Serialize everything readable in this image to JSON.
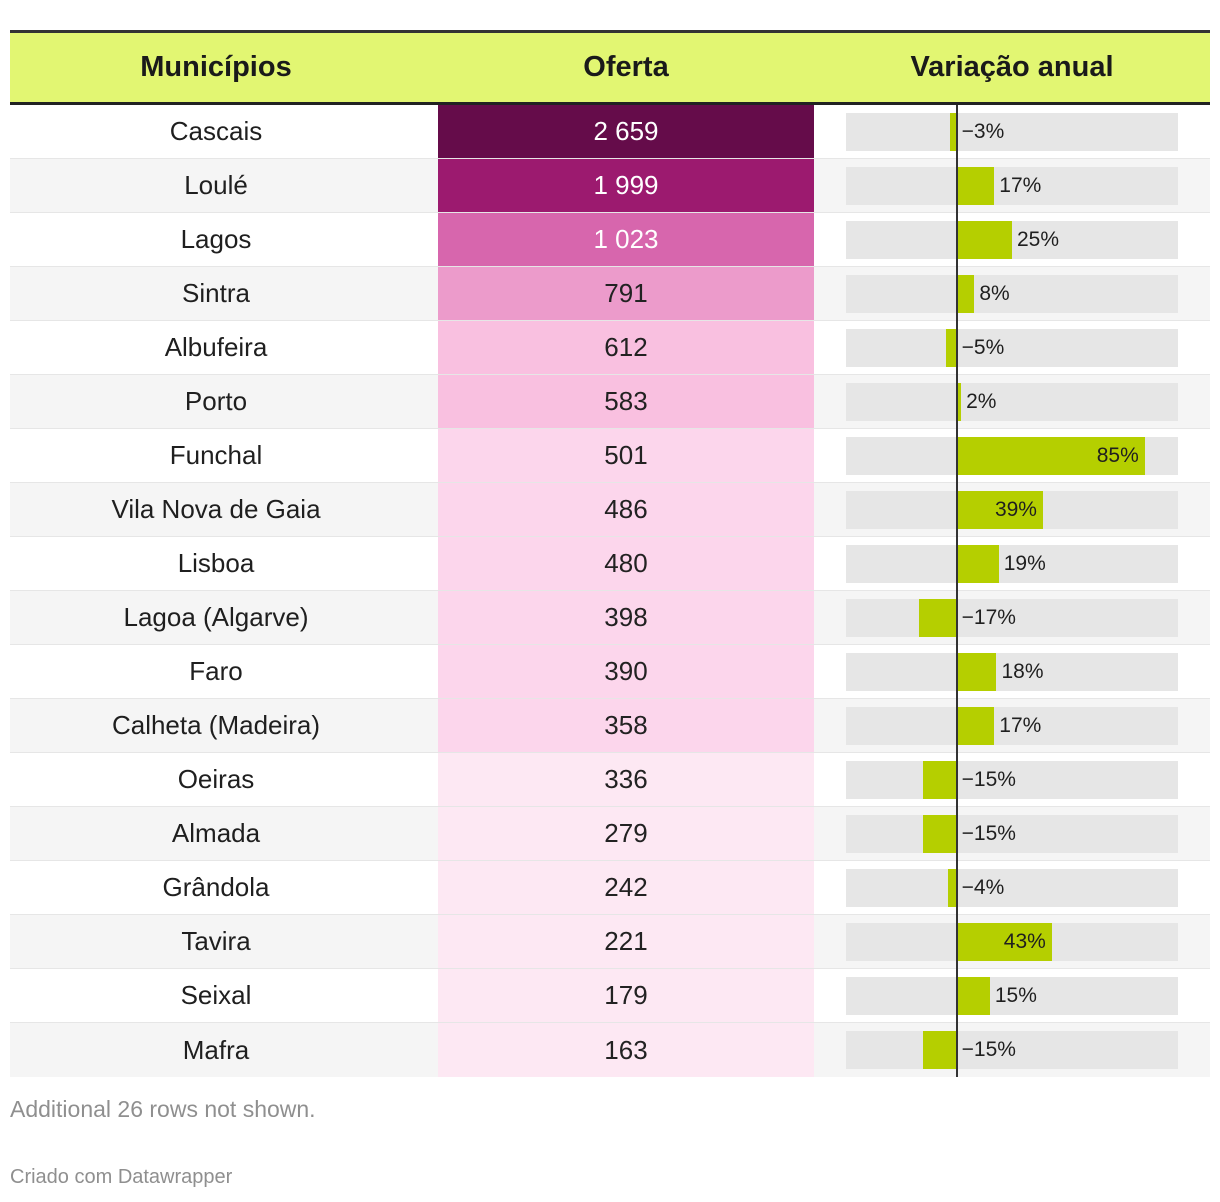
{
  "chart_data": {
    "type": "table",
    "columns": [
      "Municípios",
      "Oferta",
      "Variação anual"
    ],
    "rows": [
      {
        "municipio": "Cascais",
        "oferta": 2659,
        "oferta_label": "2 659",
        "variacao": -3,
        "variacao_label": "−3%"
      },
      {
        "municipio": "Loulé",
        "oferta": 1999,
        "oferta_label": "1 999",
        "variacao": 17,
        "variacao_label": "17%"
      },
      {
        "municipio": "Lagos",
        "oferta": 1023,
        "oferta_label": "1 023",
        "variacao": 25,
        "variacao_label": "25%"
      },
      {
        "municipio": "Sintra",
        "oferta": 791,
        "oferta_label": "791",
        "variacao": 8,
        "variacao_label": "8%"
      },
      {
        "municipio": "Albufeira",
        "oferta": 612,
        "oferta_label": "612",
        "variacao": -5,
        "variacao_label": "−5%"
      },
      {
        "municipio": "Porto",
        "oferta": 583,
        "oferta_label": "583",
        "variacao": 2,
        "variacao_label": "2%"
      },
      {
        "municipio": "Funchal",
        "oferta": 501,
        "oferta_label": "501",
        "variacao": 85,
        "variacao_label": "85%"
      },
      {
        "municipio": "Vila Nova de Gaia",
        "oferta": 486,
        "oferta_label": "486",
        "variacao": 39,
        "variacao_label": "39%"
      },
      {
        "municipio": "Lisboa",
        "oferta": 480,
        "oferta_label": "480",
        "variacao": 19,
        "variacao_label": "19%"
      },
      {
        "municipio": "Lagoa (Algarve)",
        "oferta": 398,
        "oferta_label": "398",
        "variacao": -17,
        "variacao_label": "−17%"
      },
      {
        "municipio": "Faro",
        "oferta": 390,
        "oferta_label": "390",
        "variacao": 18,
        "variacao_label": "18%"
      },
      {
        "municipio": "Calheta (Madeira)",
        "oferta": 358,
        "oferta_label": "358",
        "variacao": 17,
        "variacao_label": "17%"
      },
      {
        "municipio": "Oeiras",
        "oferta": 336,
        "oferta_label": "336",
        "variacao": -15,
        "variacao_label": "−15%"
      },
      {
        "municipio": "Almada",
        "oferta": 279,
        "oferta_label": "279",
        "variacao": -15,
        "variacao_label": "−15%"
      },
      {
        "municipio": "Grândola",
        "oferta": 242,
        "oferta_label": "242",
        "variacao": -4,
        "variacao_label": "−4%"
      },
      {
        "municipio": "Tavira",
        "oferta": 221,
        "oferta_label": "221",
        "variacao": 43,
        "variacao_label": "43%"
      },
      {
        "municipio": "Seixal",
        "oferta": 179,
        "oferta_label": "179",
        "variacao": 15,
        "variacao_label": "15%"
      },
      {
        "municipio": "Mafra",
        "oferta": 163,
        "oferta_label": "163",
        "variacao": -15,
        "variacao_label": "−15%"
      }
    ],
    "variacao_range": [
      -50,
      100
    ]
  },
  "colors": {
    "header_bg": "#e2f672",
    "bar_fill": "#b5cf00",
    "bar_track": "#e6e6e6",
    "heat_scale": [
      "#fde8f3",
      "#fcd6ec",
      "#f9c0e0",
      "#ec9bcb",
      "#d766ad",
      "#9c1a6f",
      "#650c4a"
    ]
  },
  "footer": {
    "note": "Additional 26 rows not shown.",
    "credit": "Criado com Datawrapper"
  }
}
